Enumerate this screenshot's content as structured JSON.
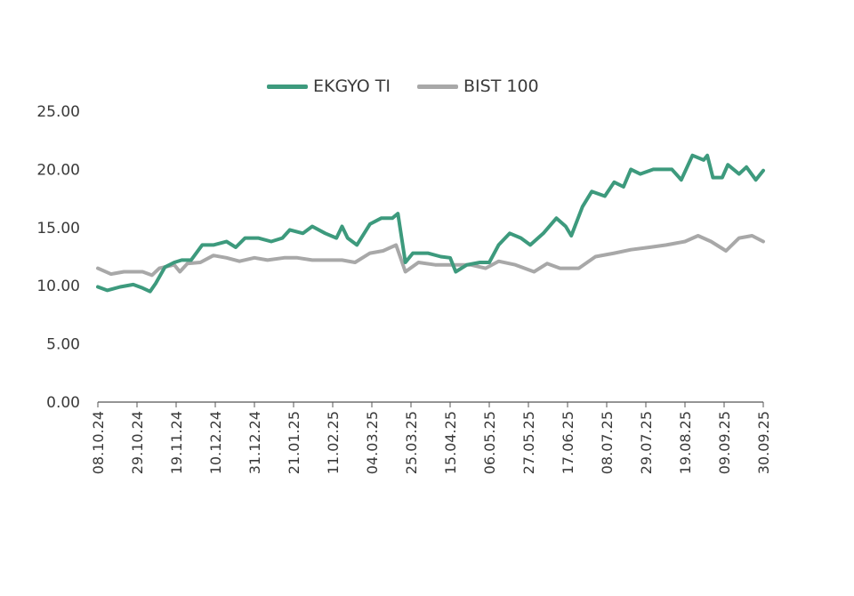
{
  "chart_data": {
    "type": "line",
    "title": "",
    "xlabel": "",
    "ylabel": "",
    "ylim": [
      0,
      25
    ],
    "yticks": [
      "0.00",
      "5.00",
      "10.00",
      "15.00",
      "20.00",
      "25.00"
    ],
    "x_unit": "days since 08.10.24",
    "xlim": [
      0,
      357
    ],
    "xtick_labels": [
      "08.10.24",
      "29.10.24",
      "19.11.24",
      "10.12.24",
      "31.12.24",
      "21.01.25",
      "11.02.25",
      "04.03.25",
      "25.03.25",
      "15.04.25",
      "06.05.25",
      "27.05.25",
      "17.06.25",
      "08.07.25",
      "29.07.25",
      "19.08.25",
      "09.09.25",
      "30.09.25"
    ],
    "grid": false,
    "legend_position": "top-center",
    "series": [
      {
        "name": "EKGYO TI",
        "color": "#3d9a7d",
        "x": [
          0,
          5,
          12,
          19,
          24,
          28,
          31,
          36,
          41,
          45,
          50,
          56,
          62,
          69,
          74,
          79,
          86,
          93,
          99,
          103,
          110,
          115,
          122,
          128,
          131,
          134,
          139,
          146,
          152,
          158,
          161,
          165,
          169,
          177,
          184,
          189,
          192,
          198,
          205,
          210,
          215,
          221,
          227,
          232,
          239,
          246,
          251,
          254,
          260,
          265,
          272,
          277,
          282,
          286,
          291,
          298,
          308,
          313,
          319,
          325,
          327,
          330,
          335,
          338,
          344,
          348,
          353,
          357
        ],
        "y": [
          9.9,
          9.6,
          9.9,
          10.1,
          9.8,
          9.5,
          10.2,
          11.6,
          12.0,
          12.2,
          12.2,
          13.5,
          13.5,
          13.8,
          13.3,
          14.1,
          14.1,
          13.8,
          14.1,
          14.8,
          14.5,
          15.1,
          14.5,
          14.1,
          15.1,
          14.1,
          13.5,
          15.3,
          15.8,
          15.8,
          16.2,
          12.0,
          12.8,
          12.8,
          12.5,
          12.4,
          11.2,
          11.8,
          12.0,
          12.0,
          13.5,
          14.5,
          14.1,
          13.5,
          14.5,
          15.8,
          15.1,
          14.3,
          16.8,
          18.1,
          17.7,
          18.9,
          18.5,
          20.0,
          19.6,
          20.0,
          20.0,
          19.1,
          21.2,
          20.8,
          21.2,
          19.3,
          19.3,
          20.4,
          19.6,
          20.2,
          19.1,
          19.9
        ]
      },
      {
        "name": "BIST 100",
        "color": "#a8a8a8",
        "x": [
          0,
          7,
          14,
          24,
          29,
          33,
          41,
          44,
          48,
          55,
          62,
          69,
          76,
          84,
          91,
          100,
          107,
          115,
          124,
          131,
          138,
          146,
          153,
          160,
          165,
          172,
          181,
          191,
          200,
          208,
          215,
          224,
          234,
          241,
          248,
          258,
          267,
          277,
          286,
          296,
          305,
          315,
          322,
          329,
          337,
          344,
          351,
          357
        ],
        "y": [
          11.5,
          11.0,
          11.2,
          11.2,
          10.9,
          11.5,
          11.8,
          11.2,
          11.9,
          12.0,
          12.6,
          12.4,
          12.1,
          12.4,
          12.2,
          12.4,
          12.4,
          12.2,
          12.2,
          12.2,
          12.0,
          12.8,
          13.0,
          13.5,
          11.2,
          12.0,
          11.8,
          11.8,
          11.8,
          11.5,
          12.1,
          11.8,
          11.2,
          11.9,
          11.5,
          11.5,
          12.5,
          12.8,
          13.1,
          13.3,
          13.5,
          13.8,
          14.3,
          13.8,
          13.0,
          14.1,
          14.3,
          13.8
        ]
      }
    ]
  }
}
